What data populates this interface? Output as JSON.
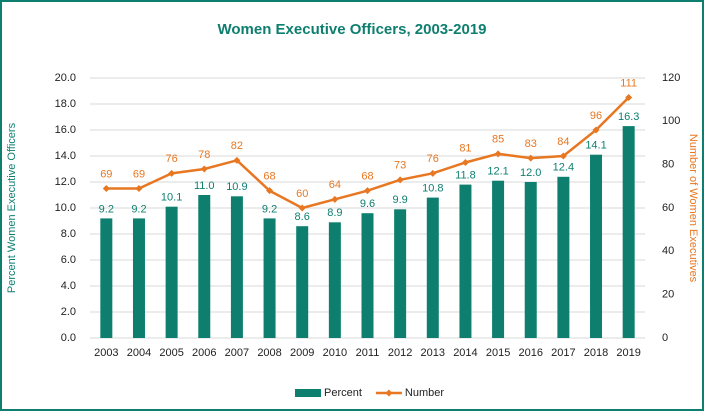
{
  "chart_data": {
    "type": "bar",
    "title": "Women Executive Officers, 2003-2019",
    "y_label": "Percent Women Executive Officers",
    "y2_label": "Number of Women Executives",
    "categories": [
      "2003",
      "2004",
      "2005",
      "2006",
      "2007",
      "2008",
      "2009",
      "2010",
      "2011",
      "2012",
      "2013",
      "2014",
      "2015",
      "2016",
      "2017",
      "2018",
      "2019"
    ],
    "series": [
      {
        "name": "Percent",
        "type": "bar",
        "color": "#0e7f6f",
        "values": [
          9.2,
          9.2,
          10.1,
          11.0,
          10.9,
          9.2,
          8.6,
          8.9,
          9.6,
          9.9,
          10.8,
          11.8,
          12.1,
          12.0,
          12.4,
          14.1,
          16.3
        ],
        "value_labels": [
          "9.2",
          "9.2",
          "10.1",
          "11.0",
          "10.9",
          "9.2",
          "8.6",
          "8.9",
          "9.6",
          "9.9",
          "10.8",
          "11.8",
          "12.1",
          "12.0",
          "12.4",
          "14.1",
          "16.3"
        ]
      },
      {
        "name": "Number",
        "type": "line",
        "axis": "y2",
        "color": "#e87722",
        "values": [
          69,
          69,
          76,
          78,
          82,
          68,
          60,
          64,
          68,
          73,
          76,
          81,
          85,
          83,
          84,
          96,
          111
        ]
      }
    ],
    "ylim": [
      0,
      20
    ],
    "yticks": [
      {
        "value": 0,
        "label": "0.0"
      },
      {
        "value": 2,
        "label": "2.0"
      },
      {
        "value": 4,
        "label": "4.0"
      },
      {
        "value": 6,
        "label": "6.0"
      },
      {
        "value": 8,
        "label": "8.0"
      },
      {
        "value": 10,
        "label": "10.0"
      },
      {
        "value": 12,
        "label": "12.0"
      },
      {
        "value": 14,
        "label": "14.0"
      },
      {
        "value": 16,
        "label": "16.0"
      },
      {
        "value": 18,
        "label": "18.0"
      },
      {
        "value": 20,
        "label": "20.0"
      }
    ],
    "y2lim": [
      0,
      120
    ],
    "y2ticks": [
      0,
      20,
      40,
      60,
      80,
      100,
      120
    ],
    "grid": true,
    "legend": "bottom"
  }
}
